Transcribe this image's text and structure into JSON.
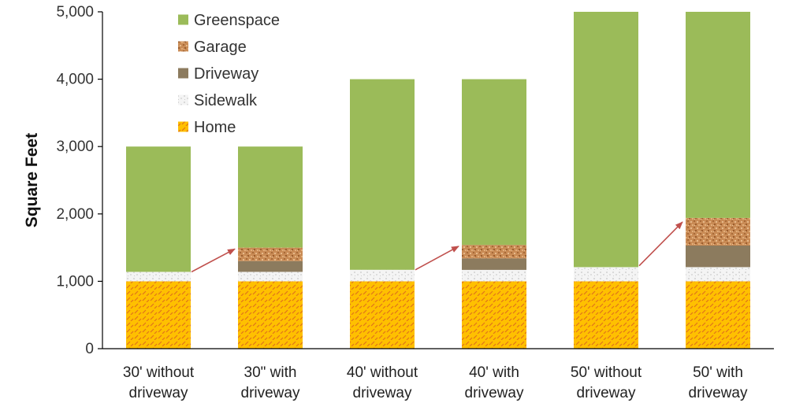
{
  "chart_data": {
    "type": "bar",
    "stacked": true,
    "categories": [
      [
        "30' without",
        "driveway"
      ],
      [
        "30\" with",
        "driveway"
      ],
      [
        "40' without",
        "driveway"
      ],
      [
        "40' with",
        "driveway"
      ],
      [
        "50' without",
        "driveway"
      ],
      [
        "50' with",
        "driveway"
      ]
    ],
    "series": [
      {
        "name": "Home",
        "color": "#FFC000",
        "pattern": "dash",
        "values": [
          1000,
          1000,
          1000,
          1000,
          1000,
          1000
        ]
      },
      {
        "name": "Sidewalk",
        "color": "#F2F2F2",
        "pattern": "speckle",
        "values": [
          140,
          140,
          170,
          170,
          210,
          210
        ]
      },
      {
        "name": "Driveway",
        "color": "#8C7B5E",
        "pattern": "solid",
        "values": [
          0,
          160,
          0,
          170,
          0,
          320
        ]
      },
      {
        "name": "Garage",
        "color": "#C98B55",
        "pattern": "gravel",
        "values": [
          0,
          200,
          0,
          200,
          0,
          410
        ]
      },
      {
        "name": "Greenspace",
        "color": "#9BBB59",
        "pattern": "solid",
        "values": [
          1860,
          1500,
          2830,
          2460,
          3790,
          3060
        ]
      }
    ],
    "title": "",
    "xlabel": "",
    "ylabel": "Square Feet",
    "ylim": [
      0,
      5000
    ],
    "yticks": [
      0,
      1000,
      2000,
      3000,
      4000,
      5000
    ],
    "ytick_labels": [
      "0",
      "1,000",
      "2,000",
      "3,000",
      "4,000",
      "5,000"
    ],
    "grid": false,
    "legend": "top-left, inside plot",
    "legend_order": [
      "Greenspace",
      "Garage",
      "Driveway",
      "Sidewalk",
      "Home"
    ],
    "arrow_color": "#C0504D",
    "arrows": [
      {
        "from_category": 0,
        "to_category": 1,
        "from_value": 1140,
        "to_value": 1480
      },
      {
        "from_category": 2,
        "to_category": 3,
        "from_value": 1170,
        "to_value": 1520
      },
      {
        "from_category": 4,
        "to_category": 5,
        "from_value": 1230,
        "to_value": 1880
      }
    ]
  }
}
